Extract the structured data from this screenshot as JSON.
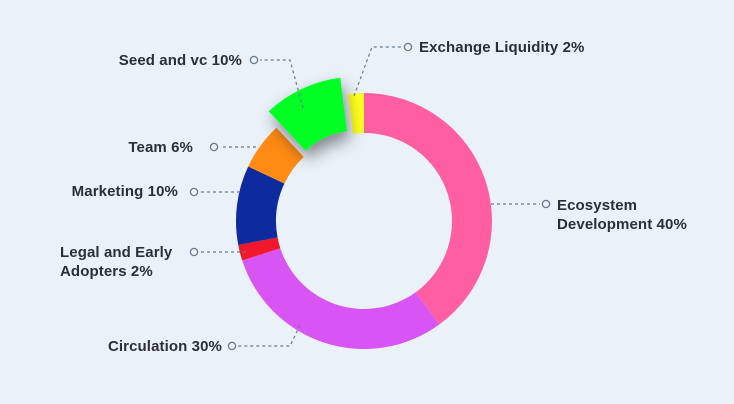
{
  "chart_data": {
    "type": "pie",
    "variant": "donut",
    "categories": [
      "Ecosystem Development",
      "Circulation",
      "Legal and Early Adopters",
      "Marketing",
      "Team",
      "Seed and vc",
      "Exchange Liquidity"
    ],
    "values": [
      40,
      30,
      2,
      10,
      6,
      10,
      2
    ],
    "colors": [
      "#ff5fa2",
      "#d855f3",
      "#f2182b",
      "#0d2a9e",
      "#ff8a14",
      "#00ff24",
      "#ffff1f"
    ],
    "labels": {
      "ecosystem_line1": "Ecosystem",
      "ecosystem_line2": "Development 40%",
      "circulation": "Circulation 30%",
      "legal_line1": "Legal and Early",
      "legal_line2": "Adopters 2%",
      "marketing": "Marketing 10%",
      "team": "Team 6%",
      "seed": "Seed and vc 10%",
      "exchange": "Exchange Liquidity 2%"
    },
    "exploded_slice": "Seed and vc",
    "start_angle": "12 o'clock, clockwise",
    "background": "#eaf1f9",
    "leader_color": "#6b7b8c"
  }
}
